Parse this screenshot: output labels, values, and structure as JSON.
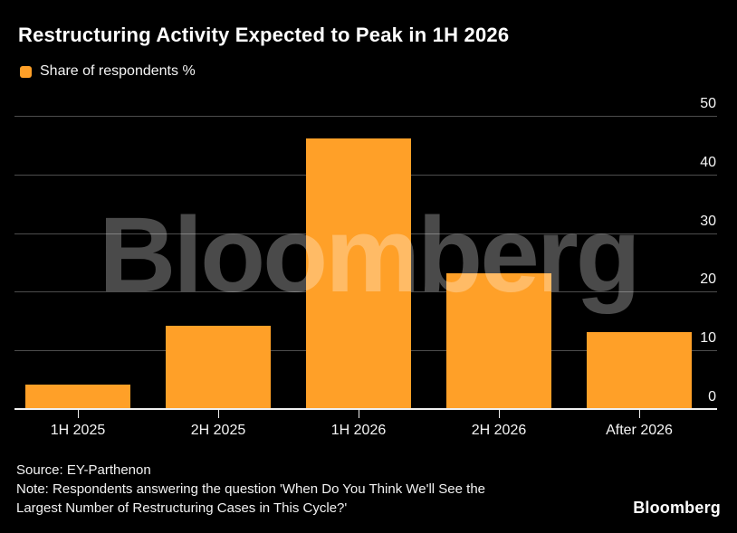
{
  "header": {
    "title": "Restructuring Activity Expected to Peak in 1H 2026",
    "legend": {
      "label": "Share of respondents %",
      "swatch_color": "#FFA028"
    }
  },
  "chart_data": {
    "type": "bar",
    "title": "Restructuring Activity Expected to Peak in 1H 2026",
    "series_name": "Share of respondents %",
    "categories": [
      "1H 2025",
      "2H 2025",
      "1H 2026",
      "2H 2026",
      "After 2026"
    ],
    "values": [
      4,
      14,
      46,
      23,
      13
    ],
    "xlabel": "",
    "ylabel": "",
    "y_ticks": [
      0,
      10,
      20,
      30,
      40,
      50
    ],
    "ylim": [
      0,
      50
    ],
    "grid": true,
    "legend_position": "top-left",
    "axis_label_side": "right",
    "bar_color": "#FFA028",
    "background_color": "#000000",
    "gridline_color": "#4d4d4d",
    "baseline_color": "#f0f0f0",
    "text_color": "#f5f5f5"
  },
  "watermark": {
    "text": "Bloomberg"
  },
  "footer": {
    "source": "Source: EY-Parthenon",
    "note_line1": "Note: Respondents answering the question 'When Do You Think We'll See the",
    "note_line2": "Largest Number of Restructuring Cases in This Cycle?'",
    "brand": "Bloomberg"
  }
}
